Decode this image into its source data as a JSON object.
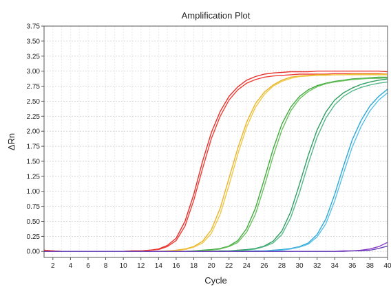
{
  "chart_data": {
    "type": "line",
    "title": "Amplification Plot",
    "xlabel": "Cycle",
    "ylabel": "ΔRn",
    "xlim": [
      1,
      40
    ],
    "ylim": [
      -0.1,
      3.75
    ],
    "xticks": [
      2,
      4,
      6,
      8,
      10,
      12,
      14,
      16,
      18,
      20,
      22,
      24,
      26,
      28,
      30,
      32,
      34,
      36,
      38,
      40
    ],
    "yticks": [
      0.0,
      0.25,
      0.5,
      0.75,
      1.0,
      1.25,
      1.5,
      1.75,
      2.0,
      2.25,
      2.5,
      2.75,
      3.0,
      3.25,
      3.5,
      3.75
    ],
    "ytick_labels": [
      "0.00",
      "0.25",
      "0.50",
      "0.75",
      "1.00",
      "1.25",
      "1.50",
      "1.75",
      "2.00",
      "2.25",
      "2.50",
      "2.75",
      "3.00",
      "3.25",
      "3.50",
      "3.75"
    ],
    "grid": true,
    "x": [
      1,
      2,
      3,
      4,
      5,
      6,
      7,
      8,
      9,
      10,
      11,
      12,
      13,
      14,
      15,
      16,
      17,
      18,
      19,
      20,
      21,
      22,
      23,
      24,
      25,
      26,
      27,
      28,
      29,
      30,
      31,
      32,
      33,
      34,
      35,
      36,
      37,
      38,
      39,
      40
    ],
    "series": [
      {
        "color": "#e8302a",
        "values": [
          0.02,
          0.01,
          0.0,
          0.0,
          0.0,
          0.0,
          0.0,
          0.0,
          0.0,
          0.0,
          0.01,
          0.01,
          0.02,
          0.04,
          0.1,
          0.22,
          0.5,
          0.95,
          1.5,
          1.98,
          2.33,
          2.58,
          2.74,
          2.85,
          2.91,
          2.95,
          2.97,
          2.98,
          2.99,
          2.99,
          2.99,
          3.0,
          3.0,
          3.0,
          3.0,
          3.0,
          3.0,
          3.0,
          3.0,
          2.99
        ]
      },
      {
        "color": "#ef3e35",
        "values": [
          0.02,
          0.01,
          0.0,
          0.0,
          0.0,
          0.0,
          0.0,
          0.0,
          0.0,
          0.0,
          0.01,
          0.01,
          0.02,
          0.03,
          0.08,
          0.18,
          0.42,
          0.85,
          1.38,
          1.88,
          2.25,
          2.52,
          2.69,
          2.8,
          2.86,
          2.9,
          2.92,
          2.93,
          2.94,
          2.95,
          2.95,
          2.95,
          2.95,
          2.96,
          2.96,
          2.96,
          2.96,
          2.96,
          2.96,
          2.95
        ]
      },
      {
        "color": "#e8b52a",
        "values": [
          0.0,
          0.0,
          0.0,
          0.0,
          0.0,
          0.0,
          0.0,
          0.0,
          0.0,
          0.0,
          0.0,
          0.0,
          0.0,
          0.0,
          0.01,
          0.02,
          0.04,
          0.08,
          0.17,
          0.36,
          0.72,
          1.22,
          1.72,
          2.15,
          2.46,
          2.65,
          2.77,
          2.85,
          2.9,
          2.92,
          2.93,
          2.94,
          2.94,
          2.94,
          2.94,
          2.95,
          2.95,
          2.95,
          2.95,
          2.95
        ]
      },
      {
        "color": "#f0c848",
        "values": [
          0.0,
          0.0,
          0.0,
          0.0,
          0.0,
          0.0,
          0.0,
          0.0,
          0.0,
          0.0,
          0.0,
          0.0,
          0.0,
          0.0,
          0.01,
          0.01,
          0.03,
          0.07,
          0.14,
          0.3,
          0.62,
          1.1,
          1.62,
          2.07,
          2.4,
          2.61,
          2.75,
          2.83,
          2.88,
          2.91,
          2.92,
          2.93,
          2.93,
          2.94,
          2.94,
          2.94,
          2.94,
          2.94,
          2.94,
          2.94
        ]
      },
      {
        "color": "#3faa3a",
        "values": [
          0.0,
          0.0,
          0.0,
          0.0,
          0.0,
          0.0,
          0.0,
          0.0,
          0.0,
          0.0,
          0.0,
          0.0,
          0.0,
          0.0,
          0.0,
          0.0,
          0.0,
          0.01,
          0.02,
          0.03,
          0.05,
          0.09,
          0.18,
          0.38,
          0.72,
          1.2,
          1.7,
          2.12,
          2.4,
          2.58,
          2.69,
          2.76,
          2.8,
          2.83,
          2.85,
          2.87,
          2.88,
          2.89,
          2.9,
          2.9
        ]
      },
      {
        "color": "#6cc060",
        "values": [
          0.0,
          0.0,
          0.0,
          0.0,
          0.0,
          0.0,
          0.0,
          0.0,
          0.0,
          0.0,
          0.0,
          0.0,
          0.0,
          0.0,
          0.0,
          0.0,
          0.0,
          0.01,
          0.01,
          0.02,
          0.04,
          0.08,
          0.15,
          0.32,
          0.62,
          1.08,
          1.58,
          2.02,
          2.34,
          2.54,
          2.66,
          2.74,
          2.79,
          2.82,
          2.84,
          2.86,
          2.87,
          2.88,
          2.88,
          2.89
        ]
      },
      {
        "color": "#2e9e60",
        "values": [
          0.0,
          0.0,
          0.0,
          0.0,
          0.0,
          0.0,
          0.0,
          0.0,
          0.0,
          0.0,
          0.0,
          0.0,
          0.0,
          0.0,
          0.0,
          0.0,
          0.0,
          0.0,
          0.0,
          0.0,
          0.01,
          0.01,
          0.02,
          0.03,
          0.05,
          0.09,
          0.17,
          0.34,
          0.66,
          1.12,
          1.6,
          2.02,
          2.32,
          2.52,
          2.64,
          2.72,
          2.78,
          2.82,
          2.85,
          2.87
        ]
      },
      {
        "color": "#56b88a",
        "values": [
          0.0,
          0.0,
          0.0,
          0.0,
          0.0,
          0.0,
          0.0,
          0.0,
          0.0,
          0.0,
          0.0,
          0.0,
          0.0,
          0.0,
          0.0,
          0.0,
          0.0,
          0.0,
          0.0,
          0.0,
          0.0,
          0.01,
          0.01,
          0.02,
          0.04,
          0.08,
          0.14,
          0.28,
          0.56,
          0.98,
          1.46,
          1.9,
          2.22,
          2.44,
          2.58,
          2.67,
          2.73,
          2.77,
          2.8,
          2.82
        ]
      },
      {
        "color": "#2ba8d8",
        "values": [
          0.0,
          0.0,
          0.0,
          0.0,
          0.0,
          0.0,
          0.0,
          0.0,
          0.0,
          0.0,
          0.0,
          0.0,
          0.0,
          0.0,
          0.0,
          0.0,
          0.0,
          0.0,
          0.0,
          0.0,
          0.0,
          0.0,
          0.0,
          0.0,
          0.01,
          0.01,
          0.02,
          0.03,
          0.05,
          0.08,
          0.14,
          0.28,
          0.54,
          0.95,
          1.42,
          1.86,
          2.18,
          2.42,
          2.58,
          2.7
        ]
      },
      {
        "color": "#5cc0e6",
        "values": [
          0.0,
          0.0,
          0.0,
          0.0,
          0.0,
          0.0,
          0.0,
          0.0,
          0.0,
          0.0,
          0.0,
          0.0,
          0.0,
          0.0,
          0.0,
          0.0,
          0.0,
          0.0,
          0.0,
          0.0,
          0.0,
          0.0,
          0.0,
          0.0,
          0.0,
          0.01,
          0.01,
          0.02,
          0.04,
          0.07,
          0.12,
          0.24,
          0.46,
          0.84,
          1.3,
          1.74,
          2.08,
          2.34,
          2.52,
          2.64
        ]
      },
      {
        "color": "#8a3cc8",
        "values": [
          0.0,
          0.0,
          0.0,
          0.0,
          0.0,
          0.0,
          0.0,
          0.0,
          0.0,
          0.0,
          0.0,
          0.0,
          0.0,
          0.0,
          0.0,
          0.0,
          0.0,
          0.0,
          0.0,
          0.0,
          0.0,
          0.0,
          0.0,
          0.0,
          0.0,
          0.0,
          0.0,
          0.0,
          0.0,
          0.0,
          0.0,
          0.0,
          0.0,
          0.0,
          0.01,
          0.01,
          0.02,
          0.04,
          0.08,
          0.15
        ]
      },
      {
        "color": "#6a40b8",
        "values": [
          0.0,
          0.0,
          0.0,
          0.0,
          0.0,
          0.0,
          0.0,
          0.0,
          0.0,
          0.0,
          0.0,
          0.0,
          0.0,
          0.0,
          0.0,
          0.0,
          0.0,
          0.0,
          0.0,
          0.0,
          0.0,
          0.0,
          0.0,
          0.0,
          0.0,
          0.0,
          0.0,
          0.0,
          0.0,
          0.0,
          0.0,
          0.0,
          0.0,
          0.0,
          0.0,
          0.01,
          0.01,
          0.02,
          0.05,
          0.09
        ]
      }
    ]
  }
}
